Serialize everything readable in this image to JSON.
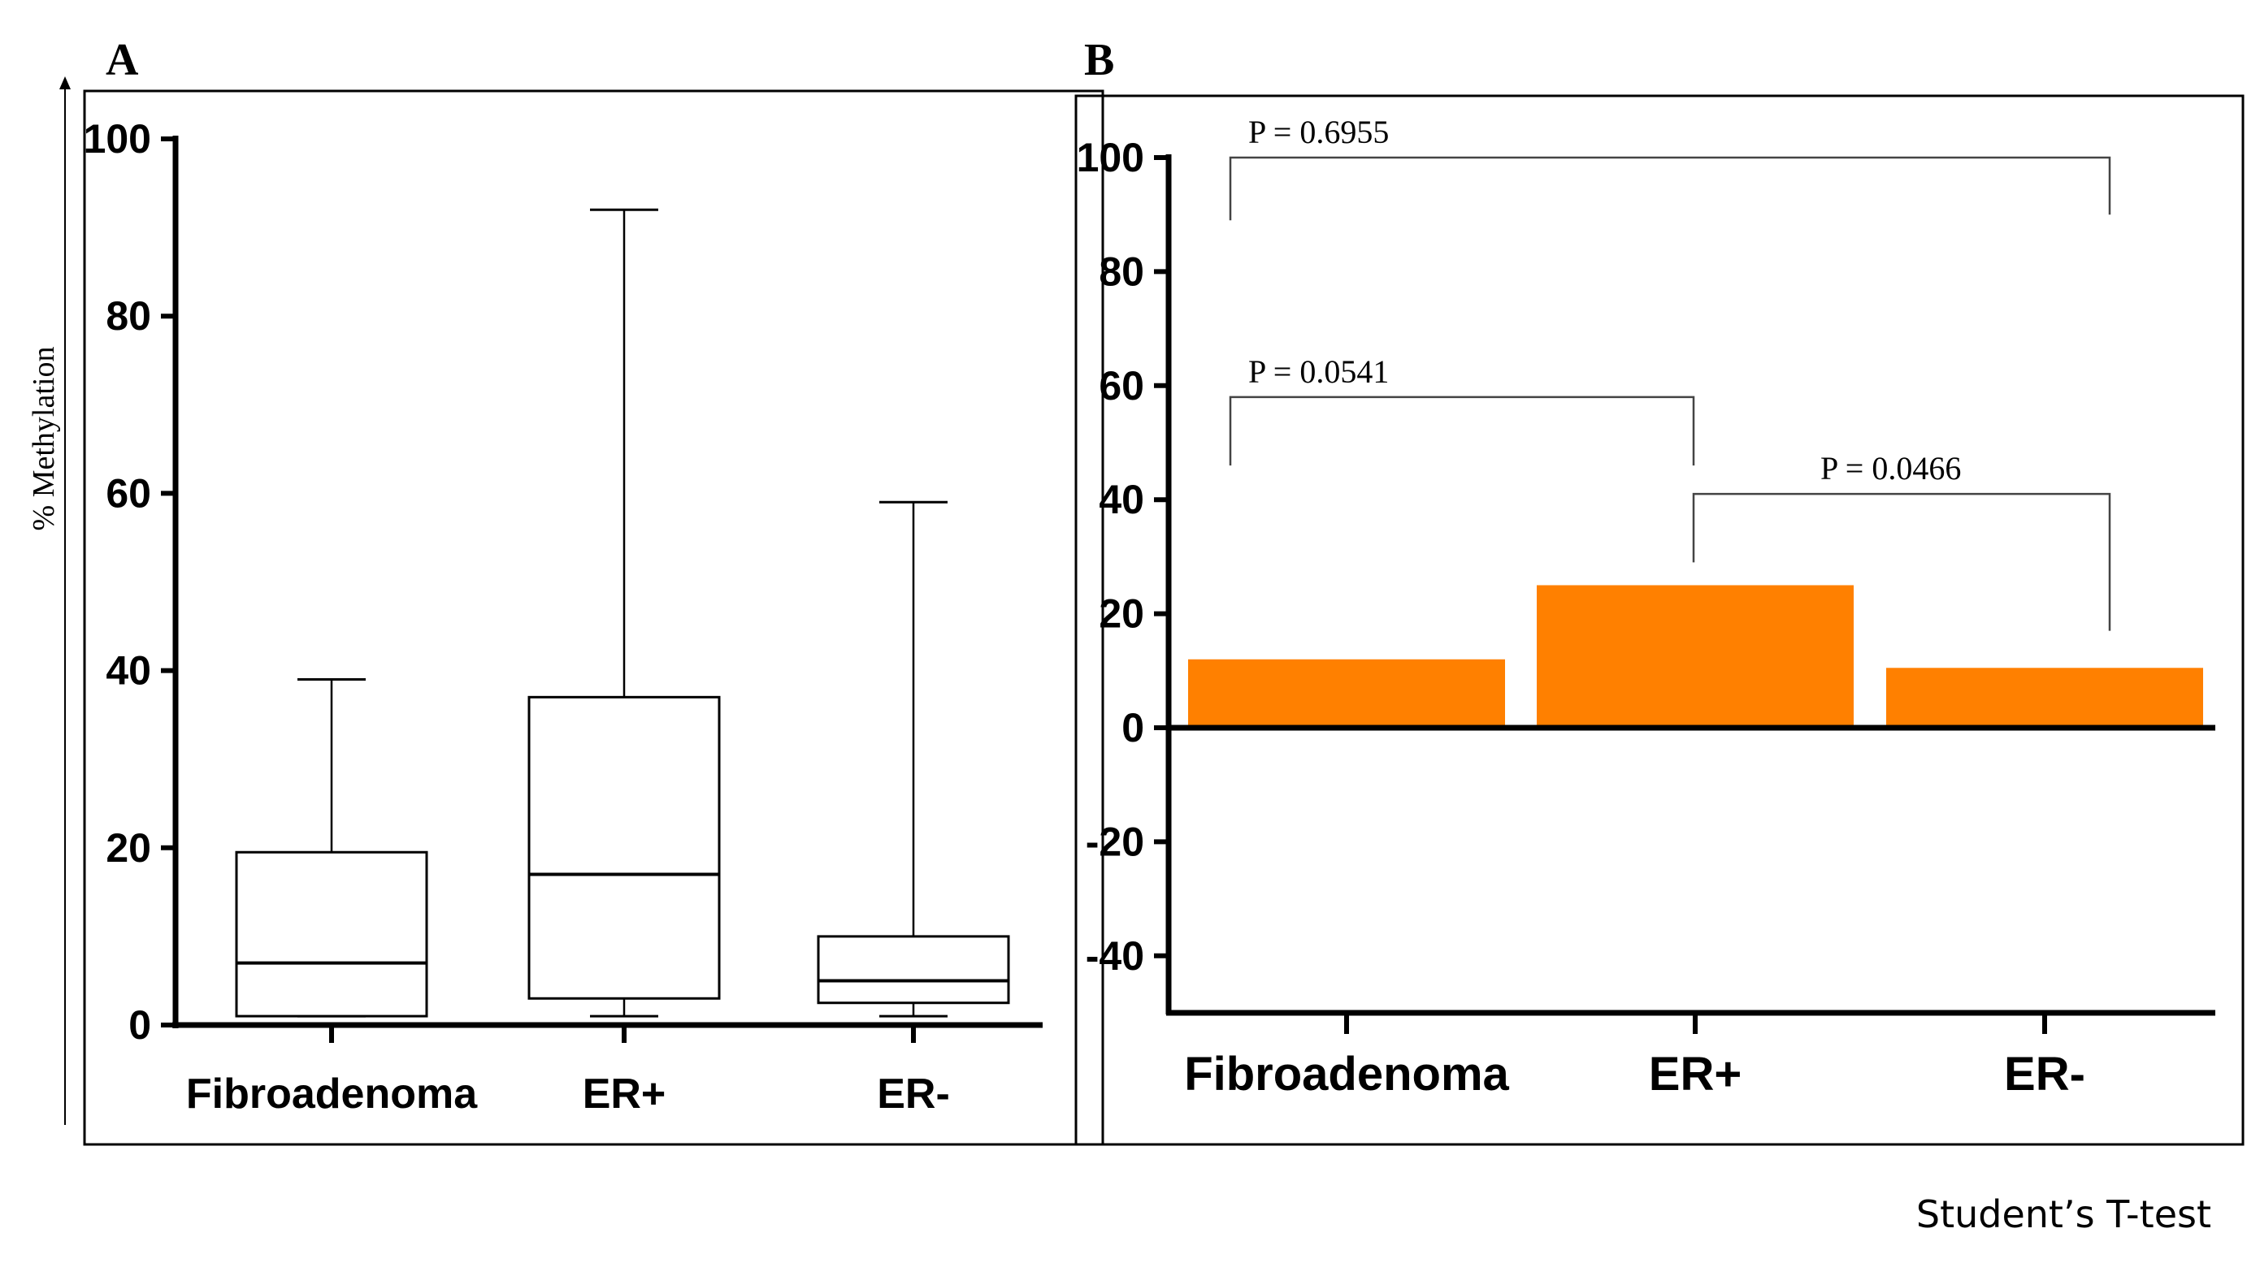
{
  "footnote": "Student’s T-test",
  "colors": {
    "bar": "#ff8000",
    "pval_significant": "#ff0000",
    "pval_normal": "#000000",
    "ink": "#000000"
  },
  "chart_data": [
    {
      "panel": "A",
      "type": "box",
      "ylabel": "% Methylation",
      "categories": [
        "Fibroadenoma",
        "ER+",
        "ER-"
      ],
      "ylim": [
        0,
        100
      ],
      "yticks": [
        0,
        20,
        40,
        60,
        80,
        100
      ],
      "boxes": [
        {
          "category": "Fibroadenoma",
          "min": 1,
          "q1": 1,
          "median": 7,
          "q3": 19.5,
          "max": 39
        },
        {
          "category": "ER+",
          "min": 1,
          "q1": 3,
          "median": 17,
          "q3": 37,
          "max": 92
        },
        {
          "category": "ER-",
          "min": 1,
          "q1": 2.5,
          "median": 5,
          "q3": 10,
          "max": 59
        }
      ]
    },
    {
      "panel": "B",
      "type": "bar",
      "categories": [
        "Fibroadenoma",
        "ER+",
        "ER-"
      ],
      "values": [
        12,
        25,
        10.5
      ],
      "ylim": [
        -50,
        100
      ],
      "yticks": [
        -40,
        -20,
        0,
        20,
        40,
        60,
        80,
        100
      ],
      "comparisons": [
        {
          "from": "Fibroadenoma",
          "to": "ER-",
          "label": "P = 0.6955",
          "significant": false,
          "bracket_y": 100,
          "left_leg_y": 89,
          "right_leg_y": 90
        },
        {
          "from": "Fibroadenoma",
          "to": "ER+",
          "label": "P = 0.0541",
          "significant": false,
          "bracket_y": 58,
          "left_leg_y": 46,
          "right_leg_y": 46
        },
        {
          "from": "ER+",
          "to": "ER-",
          "label": "P = 0.0466",
          "significant": true,
          "bracket_y": 41,
          "left_leg_y": 29,
          "right_leg_y": 17
        }
      ]
    }
  ]
}
